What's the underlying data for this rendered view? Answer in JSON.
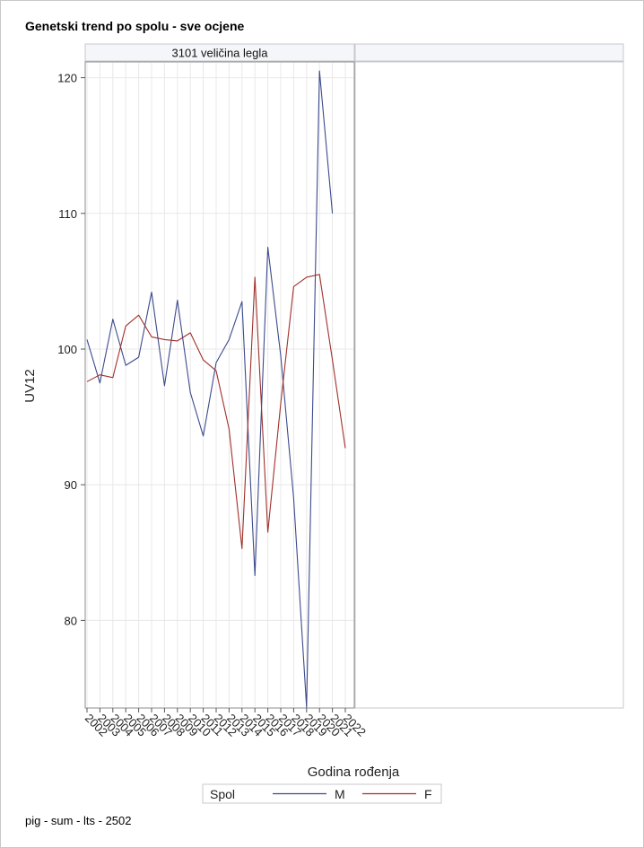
{
  "title": "Genetski trend po spolu - sve ocjene",
  "footnote": "pig - sum - lts - 2502",
  "chart_data": {
    "type": "line",
    "panels": [
      {
        "header": "3101 veličina legla",
        "has_data": true
      },
      {
        "header": "",
        "has_data": false
      }
    ],
    "xlabel": "Godina rođenja",
    "ylabel": "UV12",
    "x": [
      2002,
      2003,
      2004,
      2005,
      2006,
      2007,
      2008,
      2009,
      2010,
      2011,
      2012,
      2013,
      2014,
      2015,
      2016,
      2017,
      2018,
      2019,
      2020,
      2021,
      2022
    ],
    "y_ticks": [
      80,
      90,
      100,
      110,
      120
    ],
    "ylim": [
      73.5,
      122.2
    ],
    "grid": true,
    "series": [
      {
        "name": "M",
        "color": "#3c4a8c",
        "values": [
          100.7,
          97.5,
          102.2,
          98.8,
          99.4,
          104.2,
          97.3,
          103.6,
          96.8,
          93.6,
          99.0,
          100.7,
          103.5,
          83.3,
          107.5,
          99.5,
          89.0,
          73.6,
          120.5,
          110.0,
          null
        ]
      },
      {
        "name": "F",
        "color": "#a0302a",
        "values": [
          97.6,
          98.1,
          97.9,
          101.7,
          102.5,
          100.9,
          100.7,
          100.6,
          101.2,
          99.2,
          98.4,
          94.1,
          85.3,
          105.3,
          86.5,
          96.0,
          104.6,
          105.3,
          105.5,
          99.2,
          92.7
        ]
      }
    ],
    "legend": {
      "title": "Spol",
      "position": "bottom"
    }
  }
}
